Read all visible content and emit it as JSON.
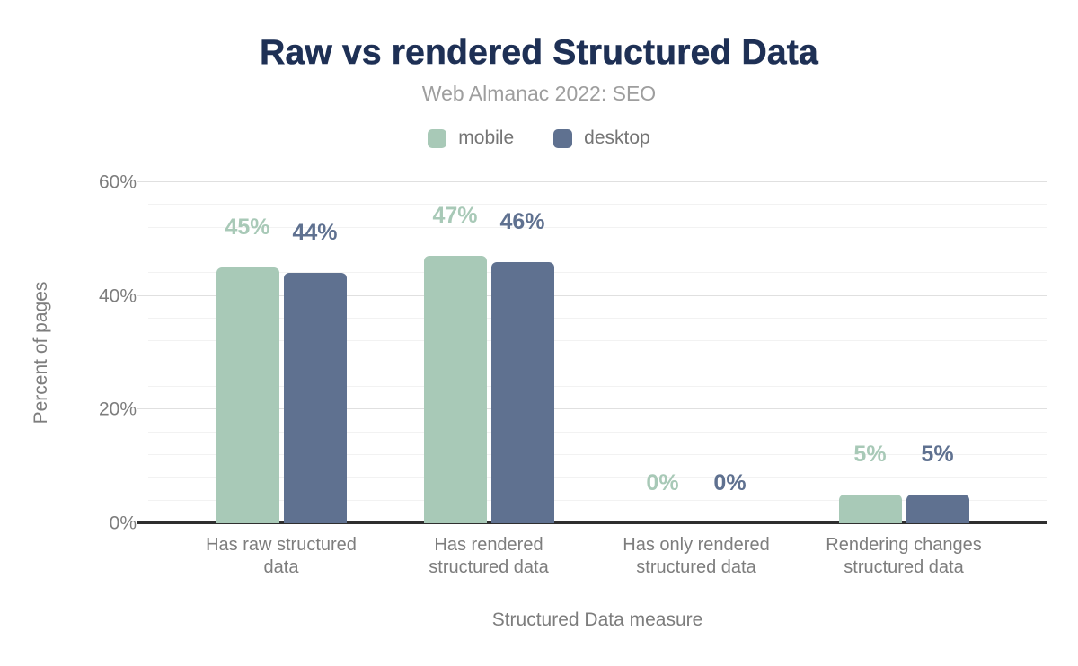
{
  "page": {
    "background": "#ffffff"
  },
  "colors": {
    "title": "#1e3055",
    "subtitle": "#9e9e9e",
    "axis_text": "#7d7d7d",
    "legend_text": "#757575",
    "axis_line": "#2f2f2f",
    "grid_major": "#e0e0e0",
    "grid_minor": "#f2f2f2"
  },
  "chart_data": {
    "type": "bar",
    "title": "Raw vs rendered Structured Data",
    "subtitle": "Web Almanac 2022: SEO",
    "xlabel": "Structured Data measure",
    "ylabel": "Percent of pages",
    "categories": [
      "Has raw structured\ndata",
      "Has rendered\nstructured data",
      "Has only rendered\nstructured data",
      "Rendering changes\nstructured data"
    ],
    "series": [
      {
        "name": "mobile",
        "color": "#a8c9b7",
        "values": [
          45,
          47,
          0,
          5
        ],
        "value_labels": [
          "45%",
          "47%",
          "0%",
          "5%"
        ]
      },
      {
        "name": "desktop",
        "color": "#5f7190",
        "values": [
          44,
          46,
          0,
          5
        ],
        "value_labels": [
          "44%",
          "46%",
          "0%",
          "5%"
        ]
      }
    ],
    "ylim": [
      0,
      60
    ],
    "yticks": [
      {
        "value": 0,
        "label": "0%"
      },
      {
        "value": 20,
        "label": "20%"
      },
      {
        "value": 40,
        "label": "40%"
      },
      {
        "value": 60,
        "label": "60%"
      }
    ],
    "grid": {
      "show": true,
      "minor_interval": 4,
      "major_interval": 20
    },
    "legend_position": "top"
  }
}
